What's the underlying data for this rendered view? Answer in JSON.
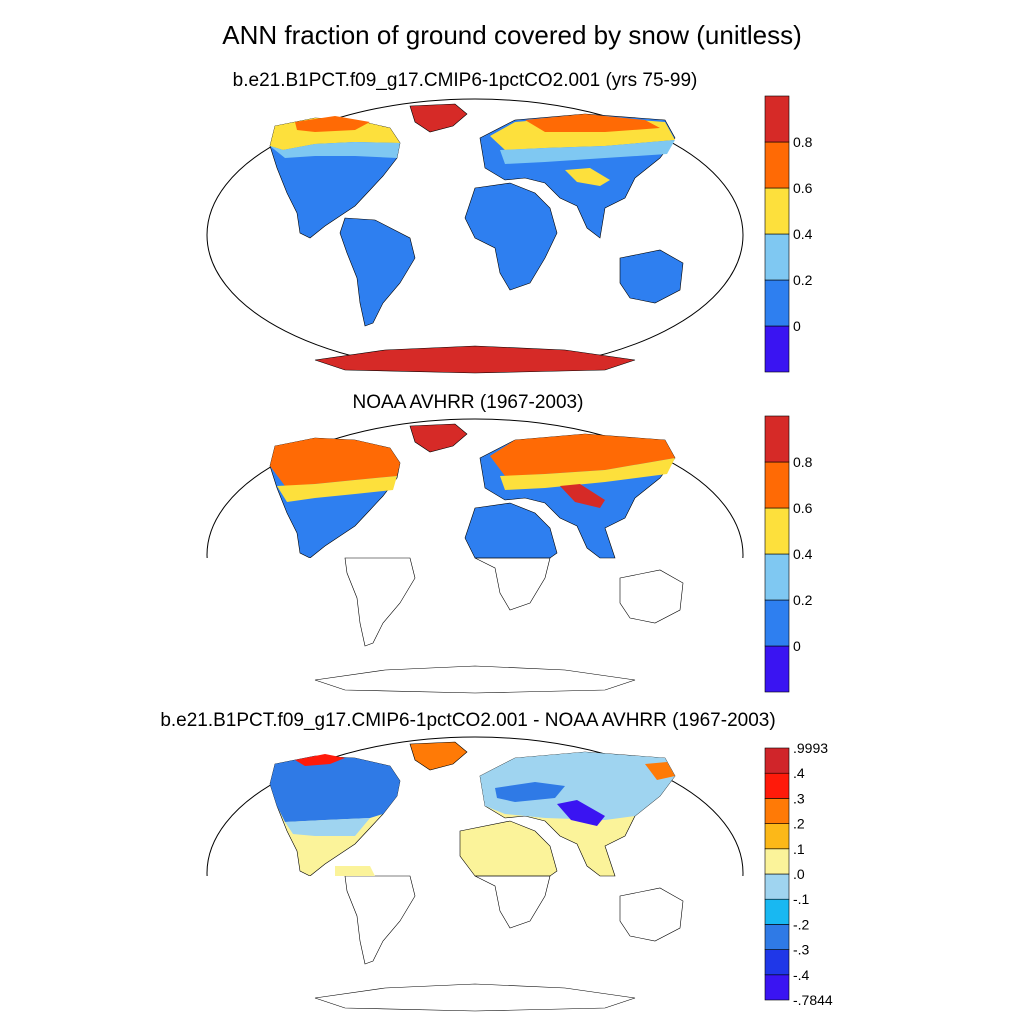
{
  "figure": {
    "title": "ANN fraction of ground covered by snow (unitless)"
  },
  "panels": [
    {
      "subtitle": "b.e21.B1PCT.f09_g17.CMIP6-1pctCO2.001 (yrs 75-99)",
      "colorbar": {
        "colors": [
          "#3a14f2",
          "#2e7ff0",
          "#7fc8f2",
          "#fde03c",
          "#ff6a05",
          "#d62a27"
        ],
        "labels": [
          "0",
          "0.2",
          "0.4",
          "0.6",
          "0.8"
        ]
      }
    },
    {
      "subtitle": "NOAA AVHRR (1967-2003)",
      "colorbar": {
        "colors": [
          "#3a14f2",
          "#2e7ff0",
          "#7fc8f2",
          "#fde03c",
          "#ff6a05",
          "#d62a27"
        ],
        "labels": [
          "0",
          "0.2",
          "0.4",
          "0.6",
          "0.8"
        ]
      }
    },
    {
      "subtitle": "b.e21.B1PCT.f09_g17.CMIP6-1pctCO2.001 - NOAA AVHRR (1967-2003)",
      "colorbar": {
        "colors": [
          "#3a14f2",
          "#1f37e8",
          "#2f7ae6",
          "#18b8f2",
          "#9fd4f0",
          "#fbf39a",
          "#fcb818",
          "#ff7a06",
          "#ff1a0a",
          "#d0252a"
        ],
        "labels": [
          "-.7844",
          "-.4",
          "-.3",
          "-.2",
          "-.1",
          ".0",
          ".1",
          ".2",
          ".3",
          ".4",
          ".9993"
        ]
      }
    }
  ]
}
